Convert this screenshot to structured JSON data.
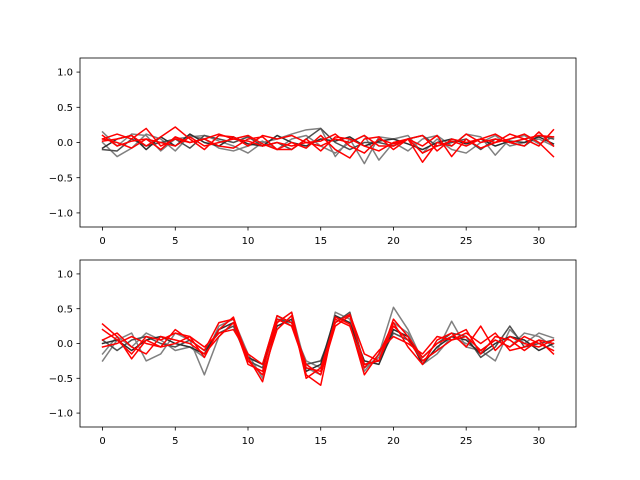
{
  "chart_data": [
    {
      "type": "line",
      "title": "",
      "xlabel": "",
      "ylabel": "",
      "xlim": [
        -1.55,
        32.55
      ],
      "ylim": [
        -1.2,
        1.2
      ],
      "xticks": [
        0,
        5,
        10,
        15,
        20,
        25,
        30
      ],
      "yticks": [
        -1.0,
        -0.5,
        0.0,
        0.5,
        1.0
      ],
      "ytick_labels": [
        "−1.0",
        "−0.5",
        "0.0",
        "0.5",
        "1.0"
      ],
      "grid": false,
      "x": [
        0,
        1,
        2,
        3,
        4,
        5,
        6,
        7,
        8,
        9,
        10,
        11,
        12,
        13,
        14,
        15,
        16,
        17,
        18,
        19,
        20,
        21,
        22,
        23,
        24,
        25,
        26,
        27,
        28,
        29,
        30,
        31
      ],
      "series": [
        {
          "color": "#808080",
          "values": [
            0.15,
            -0.05,
            0.12,
            0.1,
            -0.12,
            0.05,
            0.08,
            0.1,
            0.02,
            -0.05,
            -0.15,
            0.0,
            0.05,
            0.12,
            0.18,
            0.2,
            -0.2,
            0.05,
            -0.3,
            0.08,
            0.05,
            0.1,
            -0.15,
            0.05,
            -0.1,
            -0.15,
            0.0,
            0.1,
            -0.05,
            0.0,
            0.05,
            -0.05
          ]
        },
        {
          "color": "#808080",
          "values": [
            0.0,
            -0.2,
            -0.08,
            0.12,
            0.05,
            -0.12,
            0.1,
            0.05,
            -0.08,
            -0.12,
            -0.05,
            0.02,
            -0.1,
            0.05,
            0.1,
            -0.05,
            -0.15,
            0.0,
            0.1,
            -0.25,
            0.0,
            -0.12,
            0.05,
            0.1,
            -0.05,
            0.12,
            0.08,
            -0.18,
            0.05,
            0.1,
            -0.02,
            0.08
          ]
        },
        {
          "color": "#505050",
          "values": [
            -0.1,
            -0.12,
            0.05,
            -0.05,
            0.0,
            0.05,
            -0.08,
            0.1,
            0.05,
            0.0,
            0.08,
            -0.05,
            0.0,
            -0.1,
            0.05,
            0.2,
            0.0,
            -0.1,
            0.0,
            0.0,
            -0.05,
            0.05,
            0.1,
            -0.05,
            0.0,
            0.05,
            -0.1,
            0.05,
            0.0,
            -0.05,
            0.1,
            0.05
          ]
        },
        {
          "color": "#303030",
          "values": [
            -0.08,
            0.05,
            0.1,
            -0.1,
            0.08,
            -0.05,
            0.12,
            0.0,
            -0.05,
            0.08,
            -0.02,
            -0.05,
            0.1,
            0.0,
            -0.05,
            0.05,
            0.02,
            0.08,
            -0.05,
            0.02,
            0.05,
            -0.02,
            -0.1,
            0.0,
            0.05,
            -0.02,
            0.05,
            -0.05,
            0.02,
            0.0,
            0.08,
            -0.02
          ]
        },
        {
          "color": "#ff0000",
          "values": [
            0.05,
            0.12,
            0.05,
            0.2,
            -0.05,
            0.05,
            0.0,
            0.05,
            0.12,
            0.05,
            0.02,
            -0.05,
            0.0,
            -0.05,
            0.0,
            0.02,
            0.12,
            -0.05,
            -0.15,
            0.05,
            -0.02,
            0.05,
            -0.28,
            0.0,
            -0.05,
            0.12,
            0.0,
            0.05,
            0.0,
            0.05,
            0.1,
            0.08
          ]
        },
        {
          "color": "#ff0000",
          "values": [
            0.02,
            0.05,
            0.1,
            -0.05,
            0.08,
            0.22,
            0.05,
            -0.1,
            0.1,
            0.08,
            -0.05,
            0.1,
            0.05,
            0.1,
            0.0,
            -0.05,
            0.05,
            0.0,
            0.1,
            -0.05,
            -0.05,
            0.05,
            0.1,
            -0.12,
            0.05,
            0.0,
            0.05,
            0.12,
            0.0,
            -0.05,
            0.15,
            -0.05
          ]
        },
        {
          "color": "#ff0000",
          "values": [
            0.1,
            -0.05,
            0.02,
            0.05,
            0.0,
            -0.05,
            0.08,
            -0.05,
            0.0,
            0.05,
            0.1,
            -0.02,
            -0.1,
            0.0,
            -0.08,
            0.1,
            -0.1,
            -0.22,
            0.05,
            0.08,
            -0.1,
            0.05,
            -0.15,
            -0.05,
            0.02,
            -0.05,
            0.05,
            0.0,
            0.12,
            0.05,
            -0.05,
            0.18
          ]
        },
        {
          "color": "#ff0000",
          "values": [
            0.05,
            0.0,
            -0.08,
            0.05,
            -0.1,
            0.08,
            0.0,
            0.05,
            -0.05,
            -0.08,
            0.05,
            0.08,
            -0.1,
            -0.1,
            0.05,
            -0.12,
            0.08,
            0.05,
            -0.05,
            -0.12,
            0.0,
            0.05,
            -0.05,
            0.1,
            -0.2,
            0.05,
            -0.08,
            0.0,
            0.05,
            0.12,
            0.0,
            -0.2
          ]
        }
      ]
    },
    {
      "type": "line",
      "title": "",
      "xlabel": "",
      "ylabel": "",
      "xlim": [
        -1.55,
        32.55
      ],
      "ylim": [
        -1.2,
        1.2
      ],
      "xticks": [
        0,
        5,
        10,
        15,
        20,
        25,
        30
      ],
      "yticks": [
        -1.0,
        -0.5,
        0.0,
        0.5,
        1.0
      ],
      "ytick_labels": [
        "−1.0",
        "−0.5",
        "0.0",
        "0.5",
        "1.0"
      ],
      "grid": false,
      "x": [
        0,
        1,
        2,
        3,
        4,
        5,
        6,
        7,
        8,
        9,
        10,
        11,
        12,
        13,
        14,
        15,
        16,
        17,
        18,
        19,
        20,
        21,
        22,
        23,
        24,
        25,
        26,
        27,
        28,
        29,
        30,
        31
      ],
      "series": [
        {
          "color": "#808080",
          "values": [
            -0.25,
            0.05,
            0.15,
            -0.25,
            -0.15,
            0.15,
            0.05,
            -0.45,
            0.1,
            0.3,
            -0.2,
            -0.3,
            0.4,
            0.25,
            -0.25,
            -0.35,
            0.4,
            0.3,
            -0.4,
            -0.15,
            0.52,
            0.2,
            -0.25,
            -0.1,
            0.32,
            -0.05,
            -0.1,
            -0.25,
            0.2,
            0.0,
            0.15,
            0.08
          ]
        },
        {
          "color": "#808080",
          "values": [
            -0.15,
            0.1,
            -0.05,
            0.15,
            0.05,
            -0.1,
            -0.05,
            -0.2,
            0.25,
            0.35,
            -0.15,
            -0.5,
            0.3,
            0.45,
            -0.35,
            -0.45,
            0.45,
            0.35,
            -0.35,
            -0.2,
            0.3,
            0.15,
            -0.3,
            -0.15,
            0.1,
            0.0,
            -0.1,
            0.05,
            -0.05,
            0.15,
            0.1,
            -0.05
          ]
        },
        {
          "color": "#505050",
          "values": [
            0.05,
            -0.1,
            0.05,
            0.1,
            0.0,
            -0.05,
            0.05,
            -0.1,
            0.15,
            0.25,
            -0.25,
            -0.35,
            0.35,
            0.3,
            -0.3,
            -0.25,
            0.3,
            0.45,
            -0.3,
            -0.25,
            0.15,
            0.05,
            -0.2,
            0.0,
            0.15,
            0.1,
            -0.2,
            -0.05,
            0.25,
            -0.05,
            0.0,
            0.05
          ]
        },
        {
          "color": "#303030",
          "values": [
            0.0,
            0.05,
            -0.1,
            0.05,
            0.1,
            0.0,
            -0.05,
            -0.15,
            0.2,
            0.3,
            -0.2,
            -0.3,
            0.25,
            0.35,
            -0.4,
            -0.3,
            0.4,
            0.3,
            -0.25,
            -0.3,
            0.2,
            0.1,
            -0.3,
            -0.05,
            0.1,
            0.05,
            -0.15,
            0.0,
            0.1,
            0.05,
            -0.1,
            0.0
          ]
        },
        {
          "color": "#ff0000",
          "values": [
            0.28,
            0.1,
            -0.22,
            0.05,
            -0.05,
            0.2,
            0.05,
            -0.1,
            0.3,
            0.35,
            -0.2,
            -0.55,
            0.3,
            0.45,
            -0.45,
            -0.6,
            0.38,
            0.28,
            -0.45,
            -0.15,
            0.3,
            -0.05,
            -0.3,
            0.05,
            0.15,
            -0.05,
            0.25,
            -0.1,
            0.1,
            0.0,
            -0.05,
            0.05
          ]
        },
        {
          "color": "#ff0000",
          "values": [
            0.2,
            0.05,
            -0.15,
            0.1,
            0.05,
            0.15,
            0.1,
            -0.2,
            0.2,
            0.38,
            -0.25,
            -0.45,
            0.2,
            0.4,
            -0.5,
            -0.35,
            0.3,
            0.42,
            -0.15,
            -0.25,
            0.25,
            0.05,
            -0.25,
            -0.1,
            0.05,
            0.15,
            0.0,
            0.15,
            -0.1,
            -0.05,
            0.05,
            -0.15
          ]
        },
        {
          "color": "#ff0000",
          "values": [
            0.05,
            0.15,
            -0.05,
            -0.15,
            0.1,
            0.05,
            0.0,
            -0.15,
            0.1,
            0.3,
            -0.3,
            -0.4,
            0.35,
            0.25,
            -0.35,
            -0.4,
            0.35,
            0.25,
            -0.35,
            -0.1,
            0.1,
            0.0,
            -0.15,
            0.1,
            0.05,
            0.1,
            -0.1,
            0.05,
            -0.05,
            0.1,
            0.0,
            -0.1
          ]
        },
        {
          "color": "#ff0000",
          "values": [
            -0.05,
            0.0,
            0.1,
            0.0,
            -0.05,
            0.0,
            0.1,
            -0.05,
            0.15,
            0.2,
            -0.15,
            -0.3,
            0.4,
            0.3,
            -0.3,
            -0.45,
            0.25,
            0.4,
            -0.3,
            -0.25,
            0.35,
            0.1,
            -0.2,
            0.0,
            0.1,
            0.2,
            -0.15,
            0.1,
            0.05,
            -0.1,
            0.05,
            0.0
          ]
        }
      ]
    }
  ]
}
